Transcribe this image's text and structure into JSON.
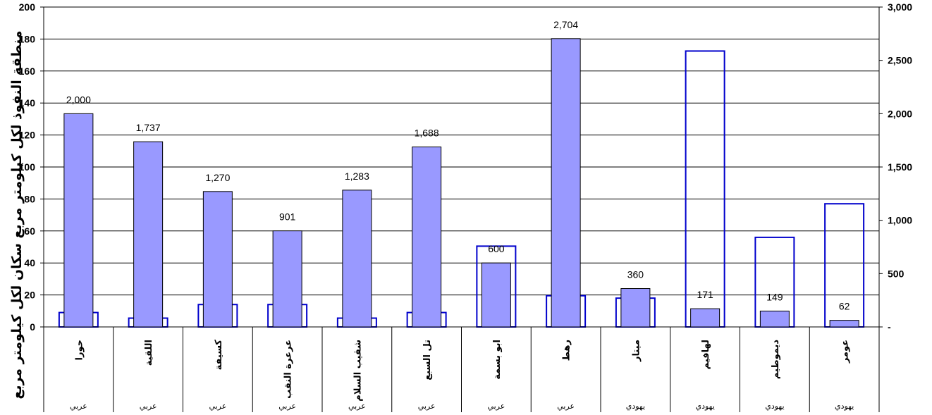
{
  "chart_data": {
    "type": "bar",
    "ylabel": "منطقة النفوذ لكل كيلومتر مربع سكان لكل كيلومتر مربع",
    "ylim_left": [
      0,
      200
    ],
    "ylim_right": [
      0,
      3000
    ],
    "left_ticks": [
      "0",
      "20",
      "40",
      "60",
      "80",
      "100",
      "120",
      "140",
      "160",
      "180",
      "200"
    ],
    "right_ticks": [
      "-",
      "500",
      "1,000",
      "1,500",
      "2,000",
      "2,500",
      "3,000"
    ],
    "categories": [
      "حورا",
      "اللقية",
      "كسيفة",
      "عرعرة النقب",
      "شقيب السلام",
      "تل السبع",
      "ابو بسمة",
      "رهط",
      "ميتار",
      "لهافيم",
      "ديموطيم",
      "عومر"
    ],
    "groups": [
      "عربي",
      "عربي",
      "عربي",
      "عربي",
      "عربي",
      "عربي",
      "عربي",
      "عربي",
      "يهودي",
      "يهودي",
      "يهودي",
      "يهودي"
    ],
    "grid": true,
    "series": [
      {
        "axis": "right",
        "color": "#9999ff",
        "values": [
          2000,
          1737,
          1270,
          901,
          1283,
          1688,
          600,
          2704,
          360,
          171,
          149,
          62
        ],
        "labels": [
          "2,000",
          "1,737",
          "1,270",
          "901",
          "1,283",
          "1,688",
          "600",
          "2,704",
          "360",
          "171",
          "149",
          "62"
        ]
      },
      {
        "axis": "left",
        "color": "#0000cc",
        "fill": "none",
        "values": [
          9,
          5.5,
          14,
          14,
          5.5,
          9,
          50.5,
          19.5,
          18,
          172.5,
          56,
          77
        ]
      }
    ]
  }
}
